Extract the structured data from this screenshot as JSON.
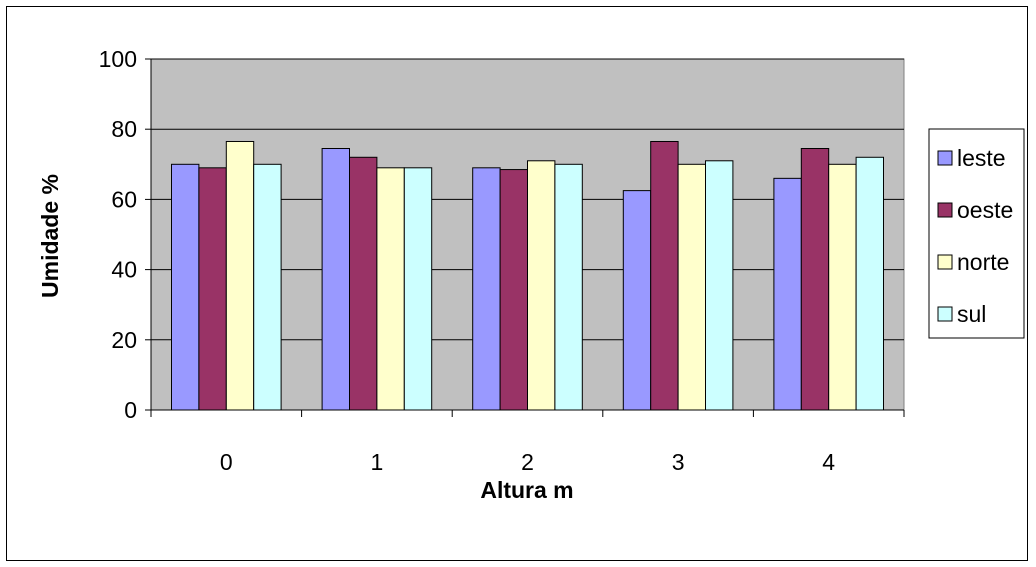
{
  "chart_data": {
    "type": "bar",
    "title": "",
    "xlabel": "Altura m",
    "ylabel": "Umidade %",
    "categories": [
      "0",
      "1",
      "2",
      "3",
      "4"
    ],
    "ylim": [
      0,
      100
    ],
    "yticks": [
      "0",
      "20",
      "40",
      "60",
      "80",
      "100"
    ],
    "grid": true,
    "plot_background": "#c0c0c0",
    "legend_position": "right",
    "series": [
      {
        "name": "leste",
        "color": "#9999ff",
        "values": [
          70,
          74.5,
          69,
          62.5,
          66
        ]
      },
      {
        "name": "oeste",
        "color": "#993366",
        "values": [
          69,
          72,
          68.5,
          76.5,
          74.5
        ]
      },
      {
        "name": "norte",
        "color": "#ffffcc",
        "values": [
          76.5,
          69,
          71,
          70,
          70
        ]
      },
      {
        "name": "sul",
        "color": "#ccffff",
        "values": [
          70,
          69,
          70,
          71,
          72
        ]
      }
    ]
  }
}
